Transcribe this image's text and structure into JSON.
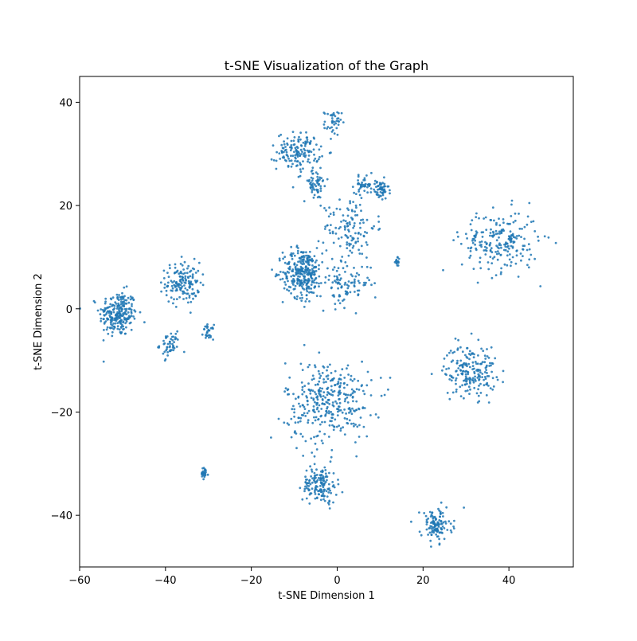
{
  "chart_data": {
    "type": "scatter",
    "title": "t-SNE Visualization of the Graph",
    "xlabel": "t-SNE Dimension 1",
    "ylabel": "t-SNE Dimension 2",
    "xlim": [
      -60,
      55
    ],
    "ylim": [
      -50,
      45
    ],
    "xticks": [
      -60,
      -40,
      -20,
      0,
      20,
      40
    ],
    "yticks": [
      -40,
      -20,
      0,
      20,
      40
    ],
    "xtick_labels": [
      "−60",
      "−40",
      "−20",
      "0",
      "20",
      "40"
    ],
    "ytick_labels": [
      "−40",
      "−20",
      "0",
      "20",
      "40"
    ],
    "grid": false,
    "legend": "none",
    "point_color": "#1f77b4",
    "clusters": [
      {
        "center": [
          -51,
          -1
        ],
        "spread": [
          2.2,
          2.2
        ],
        "count": 240
      },
      {
        "center": [
          -36,
          5
        ],
        "spread": [
          2.0,
          2.0
        ],
        "count": 150
      },
      {
        "center": [
          -39,
          -7
        ],
        "spread": [
          1.2,
          1.2
        ],
        "count": 50
      },
      {
        "center": [
          -30,
          -4.5
        ],
        "spread": [
          0.6,
          0.7
        ],
        "count": 30
      },
      {
        "center": [
          -31,
          -32
        ],
        "spread": [
          0.5,
          0.6
        ],
        "count": 25
      },
      {
        "center": [
          -9,
          30.5
        ],
        "spread": [
          2.5,
          1.8
        ],
        "count": 150
      },
      {
        "center": [
          -1,
          36
        ],
        "spread": [
          1.0,
          1.2
        ],
        "count": 40
      },
      {
        "center": [
          -5,
          24
        ],
        "spread": [
          1.5,
          1.5
        ],
        "count": 60
      },
      {
        "center": [
          6,
          24
        ],
        "spread": [
          1.0,
          0.8
        ],
        "count": 40
      },
      {
        "center": [
          10,
          23
        ],
        "spread": [
          1.0,
          1.0
        ],
        "count": 60
      },
      {
        "center": [
          3,
          16
        ],
        "spread": [
          3.0,
          3.0
        ],
        "count": 120
      },
      {
        "center": [
          -8,
          7
        ],
        "spread": [
          2.3,
          2.4
        ],
        "count": 300
      },
      {
        "center": [
          2,
          5
        ],
        "spread": [
          3.0,
          2.2
        ],
        "count": 100
      },
      {
        "center": [
          14,
          9
        ],
        "spread": [
          0.4,
          0.4
        ],
        "count": 15
      },
      {
        "center": [
          38,
          13
        ],
        "spread": [
          4.5,
          3.0
        ],
        "count": 220
      },
      {
        "center": [
          31,
          -12
        ],
        "spread": [
          3.0,
          2.5
        ],
        "count": 200
      },
      {
        "center": [
          -2,
          -18
        ],
        "spread": [
          5.0,
          4.0
        ],
        "count": 350
      },
      {
        "center": [
          -4,
          -34
        ],
        "spread": [
          2.0,
          1.8
        ],
        "count": 150
      },
      {
        "center": [
          23,
          -42
        ],
        "spread": [
          1.8,
          1.6
        ],
        "count": 120
      }
    ]
  }
}
